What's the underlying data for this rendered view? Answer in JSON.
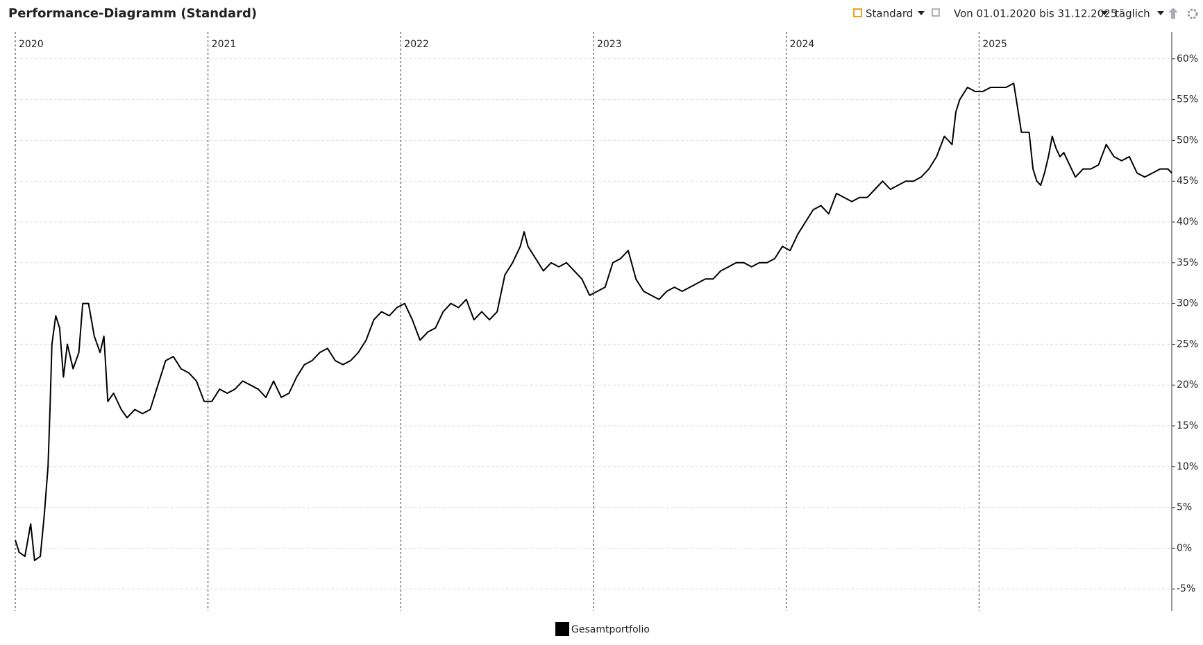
{
  "header": {
    "title": "Performance-Diagramm (Standard)",
    "view": "Standard",
    "range": "Von 01.01.2020 bis 31.12.2025",
    "interval": "täglich"
  },
  "chart_data": {
    "type": "line",
    "x": [
      2020.0,
      2020.02,
      2020.05,
      2020.08,
      2020.1,
      2020.13,
      2020.15,
      2020.17,
      2020.18,
      2020.19,
      2020.21,
      2020.23,
      2020.25,
      2020.27,
      2020.3,
      2020.33,
      2020.35,
      2020.38,
      2020.41,
      2020.44,
      2020.46,
      2020.48,
      2020.51,
      2020.55,
      2020.58,
      2020.62,
      2020.66,
      2020.7,
      2020.74,
      2020.78,
      2020.82,
      2020.86,
      2020.9,
      2020.94,
      2020.98,
      2021.02,
      2021.06,
      2021.1,
      2021.14,
      2021.18,
      2021.22,
      2021.26,
      2021.3,
      2021.34,
      2021.38,
      2021.42,
      2021.46,
      2021.5,
      2021.54,
      2021.58,
      2021.62,
      2021.66,
      2021.7,
      2021.74,
      2021.78,
      2021.82,
      2021.86,
      2021.9,
      2021.94,
      2021.98,
      2022.02,
      2022.06,
      2022.1,
      2022.14,
      2022.18,
      2022.22,
      2022.26,
      2022.3,
      2022.34,
      2022.38,
      2022.42,
      2022.46,
      2022.5,
      2022.54,
      2022.58,
      2022.62,
      2022.64,
      2022.66,
      2022.7,
      2022.74,
      2022.78,
      2022.82,
      2022.86,
      2022.9,
      2022.94,
      2022.98,
      2023.02,
      2023.06,
      2023.1,
      2023.14,
      2023.18,
      2023.22,
      2023.26,
      2023.3,
      2023.34,
      2023.38,
      2023.42,
      2023.46,
      2023.5,
      2023.54,
      2023.58,
      2023.62,
      2023.66,
      2023.7,
      2023.74,
      2023.78,
      2023.82,
      2023.86,
      2023.9,
      2023.94,
      2023.98,
      2024.02,
      2024.06,
      2024.1,
      2024.14,
      2024.18,
      2024.22,
      2024.26,
      2024.3,
      2024.34,
      2024.38,
      2024.42,
      2024.46,
      2024.5,
      2024.54,
      2024.58,
      2024.62,
      2024.66,
      2024.7,
      2024.74,
      2024.78,
      2024.82,
      2024.86,
      2024.88,
      2024.9,
      2024.94,
      2024.98,
      2025.02,
      2025.06,
      2025.1,
      2025.14,
      2025.18,
      2025.2,
      2025.22,
      2025.26,
      2025.28,
      2025.3,
      2025.32,
      2025.34,
      2025.36,
      2025.38,
      2025.4,
      2025.42,
      2025.44,
      2025.47,
      2025.5,
      2025.54,
      2025.58,
      2025.62,
      2025.66,
      2025.7,
      2025.74,
      2025.78,
      2025.82,
      2025.86,
      2025.9,
      2025.94,
      2025.98,
      2026.0
    ],
    "series": [
      {
        "name": "Gesamtportfolio",
        "color": "#000000",
        "values": [
          1,
          -0.5,
          -1,
          3,
          -1.5,
          -1,
          4,
          10,
          17,
          25,
          28.5,
          27,
          21,
          25,
          22,
          24,
          30,
          30,
          26,
          24,
          26,
          18,
          19,
          17,
          16,
          17,
          16.5,
          17,
          20,
          23,
          23.5,
          22,
          21.5,
          20.5,
          18,
          18,
          19.5,
          19,
          19.5,
          20.5,
          20,
          19.5,
          18.5,
          20.5,
          18.5,
          19,
          21,
          22.5,
          23,
          24,
          24.5,
          23,
          22.5,
          23,
          24,
          25.5,
          28,
          29,
          28.5,
          29.5,
          30,
          28,
          25.5,
          26.5,
          27,
          29,
          30,
          29.5,
          30.5,
          28,
          29,
          28,
          29,
          33.5,
          35,
          37,
          38.8,
          37,
          35.5,
          34,
          35,
          34.5,
          35,
          34,
          33,
          31,
          31.5,
          32,
          35,
          35.5,
          36.5,
          33,
          31.5,
          31,
          30.5,
          31.5,
          32,
          31.5,
          32,
          32.5,
          33,
          33,
          34,
          34.5,
          35,
          35,
          34.5,
          35,
          35,
          35.5,
          37,
          36.5,
          38.5,
          40,
          41.5,
          42,
          41,
          43.5,
          43,
          42.5,
          43,
          43,
          44,
          45,
          44,
          44.5,
          45,
          45,
          45.5,
          46.5,
          48,
          50.5,
          49.5,
          53.5,
          55,
          56.5,
          56,
          56,
          56.5,
          56.5,
          56.5,
          57,
          54,
          51,
          51,
          46.5,
          45,
          44.5,
          46,
          48,
          50.5,
          49,
          48,
          48.5,
          47,
          45.5,
          46.5,
          46.5,
          47,
          49.5,
          48,
          47.5,
          48,
          46,
          45.5,
          46,
          46.5,
          46.5,
          46
        ]
      }
    ],
    "xlim": [
      2020,
      2026
    ],
    "xticks": [
      2020,
      2021,
      2022,
      2023,
      2024,
      2025
    ],
    "ylim": [
      -7.7,
      63.3
    ],
    "yticks": [
      {
        "value": -5,
        "label": "-5%"
      },
      {
        "value": 0,
        "label": "0%"
      },
      {
        "value": 5,
        "label": "5%"
      },
      {
        "value": 10,
        "label": "10%"
      },
      {
        "value": 15,
        "label": "15%"
      },
      {
        "value": 20,
        "label": "20%"
      },
      {
        "value": 25,
        "label": "25%"
      },
      {
        "value": 30,
        "label": "30%"
      },
      {
        "value": 35,
        "label": "35%"
      },
      {
        "value": 40,
        "label": "40%"
      },
      {
        "value": 45,
        "label": "45%"
      },
      {
        "value": 50,
        "label": "50%"
      },
      {
        "value": 55,
        "label": "55%"
      },
      {
        "value": 60,
        "label": "60%"
      }
    ],
    "grid": true
  }
}
